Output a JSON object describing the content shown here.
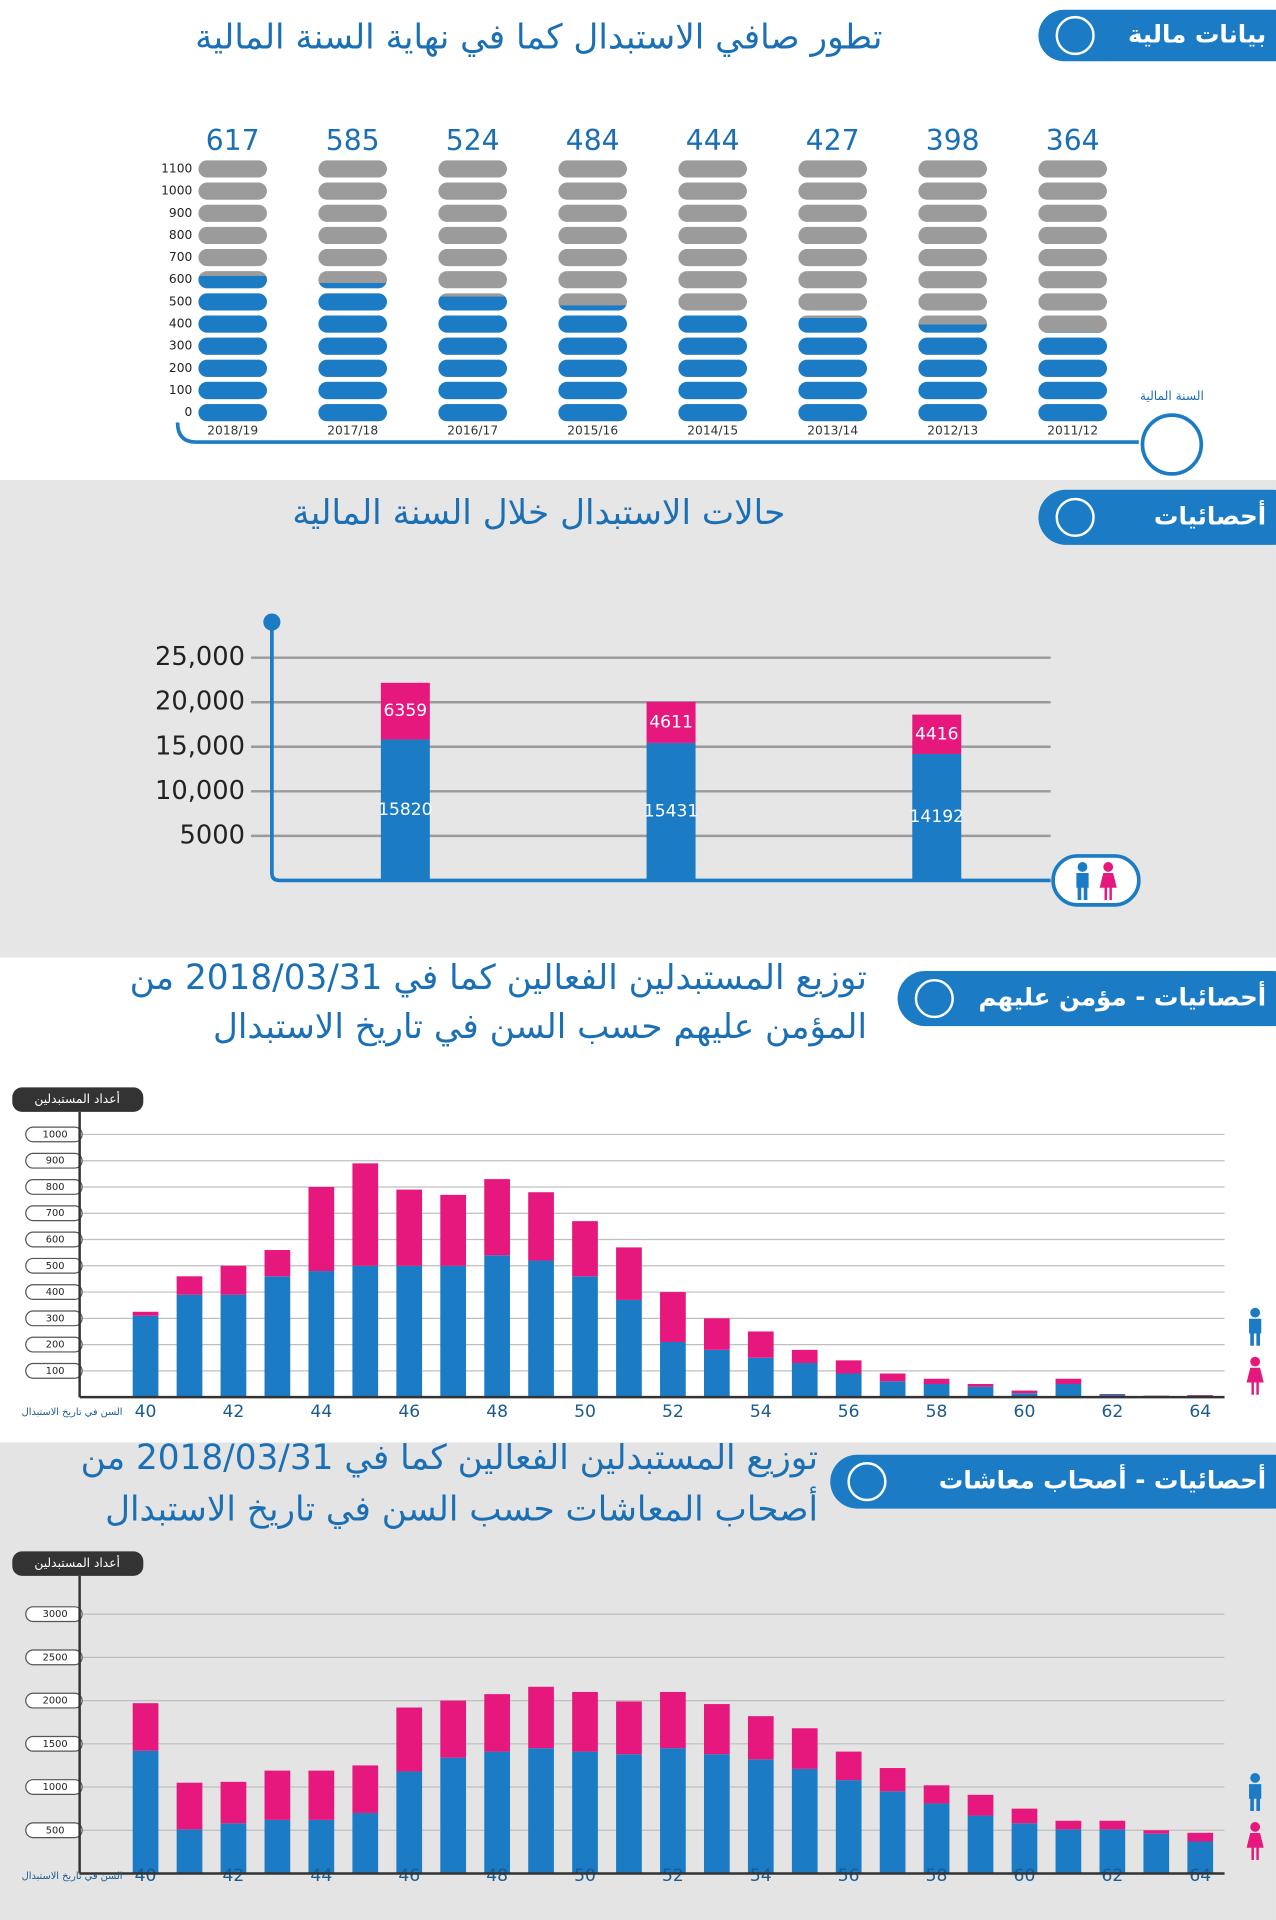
{
  "chart_data": [
    {
      "type": "pill_bar",
      "badge": "بيانات مالية",
      "title": "تطور صافي الاستبدال كما في نهاية السنة المالية",
      "x_label": "السنة المالية",
      "categories": [
        "2018/19",
        "2017/18",
        "2016/17",
        "2015/16",
        "2014/15",
        "2013/14",
        "2012/13",
        "2011/12"
      ],
      "values": [
        617,
        585,
        524,
        484,
        444,
        427,
        398,
        364
      ],
      "color": "#1b7cc5",
      "ylim": [
        0,
        1100
      ],
      "yticks": [
        0,
        100,
        200,
        300,
        400,
        500,
        600,
        700,
        800,
        900,
        1000,
        1100
      ]
    },
    {
      "type": "stacked_bar",
      "badge": "أحصائيات",
      "title": "حالات الاستبدال خلال السنة المالية",
      "series": [
        {
          "color": "#1b7cc5",
          "values": [
            15820,
            15431,
            14192
          ]
        },
        {
          "color": "#e6187d",
          "values": [
            6359,
            4611,
            4416
          ]
        }
      ],
      "ylim": [
        0,
        29000
      ],
      "yticks": [
        5000,
        {
          "value": 10000,
          "label": "10,000"
        },
        {
          "value": 15000,
          "label": "15,000"
        },
        {
          "value": 20000,
          "label": "20,000"
        },
        {
          "value": 25000,
          "label": "25,000"
        }
      ],
      "grid": true
    },
    {
      "type": "stacked_bar",
      "badge": "أحصائيات - مؤمن عليهم",
      "title": [
        "توزيع المستبدلين الفعالين كما في 2018/03/31 من",
        "المؤمن عليهم حسب السن في تاريخ الاستبدال"
      ],
      "y_label": "أعداد المستبدلين",
      "x_label": "السن في تاريخ الاستبدال",
      "x": [
        40,
        41,
        42,
        43,
        44,
        45,
        46,
        47,
        48,
        49,
        50,
        51,
        52,
        53,
        54,
        55,
        56,
        57,
        58,
        59,
        60,
        61,
        62,
        63,
        64
      ],
      "series": [
        {
          "color": "#1b7cc5",
          "values": [
            310,
            390,
            390,
            460,
            480,
            500,
            500,
            500,
            540,
            520,
            460,
            370,
            210,
            180,
            150,
            130,
            90,
            60,
            50,
            40,
            15,
            50,
            10,
            5,
            6
          ]
        },
        {
          "color": "#e6187d",
          "values": [
            15,
            70,
            110,
            100,
            320,
            390,
            290,
            270,
            290,
            260,
            210,
            200,
            190,
            120,
            100,
            50,
            50,
            30,
            20,
            10,
            10,
            20,
            2,
            1,
            2
          ]
        }
      ],
      "xlim": [
        38.5,
        65.5
      ],
      "xticks": [
        40,
        42,
        44,
        46,
        48,
        50,
        52,
        54,
        56,
        58,
        60,
        62,
        64
      ],
      "ylim": [
        0,
        1100
      ],
      "yticks": [
        100,
        200,
        300,
        400,
        500,
        600,
        700,
        800,
        900,
        1000
      ],
      "grid": true
    },
    {
      "type": "stacked_bar",
      "badge": "أحصائيات - أصحاب معاشات",
      "title": [
        "توزيع المستبدلين الفعالين كما في 2018/03/31 من",
        "أصحاب المعاشات حسب السن في تاريخ الاستبدال"
      ],
      "y_label": "أعداد المستبدلين",
      "x_label": "السن في تاريخ الاستبدال",
      "x": [
        40,
        41,
        42,
        43,
        44,
        45,
        46,
        47,
        48,
        49,
        50,
        51,
        52,
        53,
        54,
        55,
        56,
        57,
        58,
        59,
        60,
        61,
        62,
        63,
        64
      ],
      "series": [
        {
          "color": "#1b7cc5",
          "values": [
            1420,
            510,
            580,
            620,
            620,
            700,
            1180,
            1340,
            1410,
            1450,
            1410,
            1380,
            1450,
            1380,
            1320,
            1210,
            1080,
            950,
            810,
            670,
            580,
            510,
            510,
            460,
            370
          ]
        },
        {
          "color": "#e6187d",
          "values": [
            550,
            540,
            480,
            570,
            570,
            550,
            740,
            660,
            665,
            710,
            690,
            610,
            650,
            580,
            500,
            470,
            330,
            270,
            210,
            240,
            170,
            100,
            100,
            40,
            100
          ]
        }
      ],
      "xlim": [
        38.5,
        65.5
      ],
      "xticks": [
        40,
        42,
        44,
        46,
        48,
        50,
        52,
        54,
        56,
        58,
        60,
        62,
        64
      ],
      "ylim": [
        0,
        3400
      ],
      "yticks": [
        500,
        1000,
        1500,
        2000,
        2500,
        3000
      ],
      "grid": true
    }
  ]
}
